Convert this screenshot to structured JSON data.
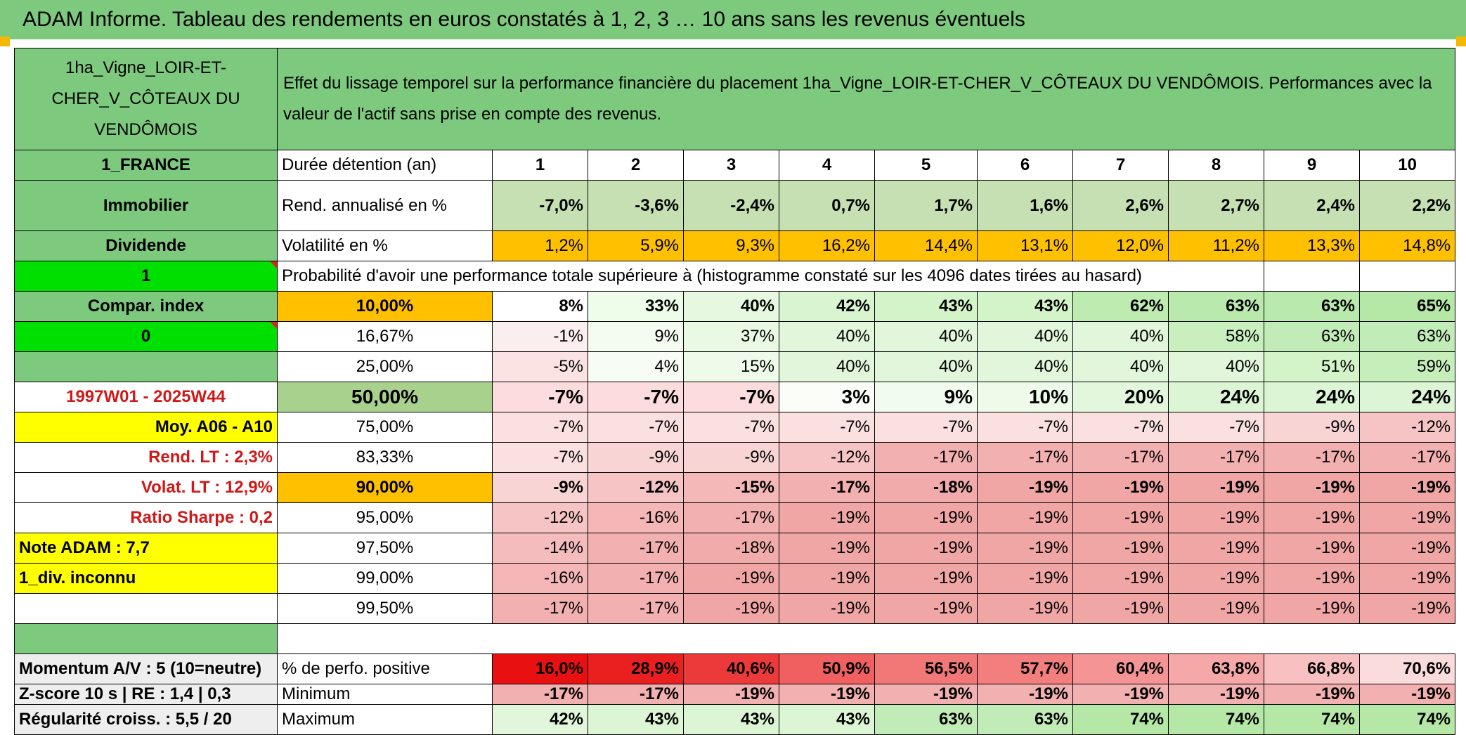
{
  "title": "ADAM Informe. Tableau des rendements en euros constatés à 1, 2, 3 … 10 ans sans les revenus éventuels",
  "asset_name": "1ha_Vigne_LOIR-ET-CHER_V_CÔTEAUX DU VENDÔMOIS",
  "header_text": "Effet du lissage temporel sur la performance financière du placement 1ha_Vigne_LOIR-ET-CHER_V_CÔTEAUX DU VENDÔMOIS. Performances avec la valeur de l'actif sans prise en compte des revenus.",
  "left": {
    "country": "1_FRANCE",
    "category": "Immobilier",
    "income_type": "Dividende",
    "option1": "1",
    "compar": "Compar. index",
    "option2": "0",
    "period": "1997W01 - 2025W44",
    "moy": "Moy. A06 - A10",
    "rend_lt": "Rend. LT :   2,3%",
    "volat_lt": "Volat. LT :   12,9%",
    "sharpe": "Ratio Sharpe :   0,2",
    "note": "Note ADAM : 7,7",
    "div": "1_div. inconnu",
    "momentum": "Momentum A/V : 5 (10=neutre)",
    "zscore": "Z-score 10 s | RE : 1,4 | 0,3",
    "regularite": "Régularité croiss. : 5,5 / 20"
  },
  "duration_label": "Durée détention (an)",
  "years": [
    "1",
    "2",
    "3",
    "4",
    "5",
    "6",
    "7",
    "8",
    "9",
    "10"
  ],
  "rend_label": "Rend. annualisé en %",
  "rend": [
    "-7,0%",
    "-3,6%",
    "-2,4%",
    "0,7%",
    "1,7%",
    "1,6%",
    "2,6%",
    "2,7%",
    "2,4%",
    "2,2%"
  ],
  "vol_label": "Volatilité en %",
  "vol": [
    "1,2%",
    "5,9%",
    "9,3%",
    "16,2%",
    "14,4%",
    "13,1%",
    "12,0%",
    "11,2%",
    "13,3%",
    "14,8%"
  ],
  "prob_label": "Probabilité d'avoir une performance totale supérieure à (histogramme constaté sur les 4096 dates tirées au hasard)",
  "quantiles": [
    {
      "p": "10,00%",
      "bold": true,
      "v": [
        "8%",
        "33%",
        "40%",
        "42%",
        "43%",
        "43%",
        "62%",
        "63%",
        "63%",
        "65%"
      ]
    },
    {
      "p": "16,67%",
      "bold": false,
      "v": [
        "-1%",
        "9%",
        "37%",
        "40%",
        "40%",
        "40%",
        "40%",
        "58%",
        "63%",
        "63%"
      ]
    },
    {
      "p": "25,00%",
      "bold": false,
      "v": [
        "-5%",
        "4%",
        "15%",
        "40%",
        "40%",
        "40%",
        "40%",
        "40%",
        "51%",
        "59%"
      ]
    },
    {
      "p": "50,00%",
      "bold": true,
      "v": [
        "-7%",
        "-7%",
        "-7%",
        "3%",
        "9%",
        "10%",
        "20%",
        "24%",
        "24%",
        "24%"
      ]
    },
    {
      "p": "75,00%",
      "bold": false,
      "v": [
        "-7%",
        "-7%",
        "-7%",
        "-7%",
        "-7%",
        "-7%",
        "-7%",
        "-7%",
        "-9%",
        "-12%"
      ]
    },
    {
      "p": "83,33%",
      "bold": false,
      "v": [
        "-7%",
        "-9%",
        "-9%",
        "-12%",
        "-17%",
        "-17%",
        "-17%",
        "-17%",
        "-17%",
        "-17%"
      ]
    },
    {
      "p": "90,00%",
      "bold": true,
      "v": [
        "-9%",
        "-12%",
        "-15%",
        "-17%",
        "-18%",
        "-19%",
        "-19%",
        "-19%",
        "-19%",
        "-19%"
      ]
    },
    {
      "p": "95,00%",
      "bold": false,
      "v": [
        "-12%",
        "-16%",
        "-17%",
        "-19%",
        "-19%",
        "-19%",
        "-19%",
        "-19%",
        "-19%",
        "-19%"
      ]
    },
    {
      "p": "97,50%",
      "bold": false,
      "v": [
        "-14%",
        "-17%",
        "-18%",
        "-19%",
        "-19%",
        "-19%",
        "-19%",
        "-19%",
        "-19%",
        "-19%"
      ]
    },
    {
      "p": "99,00%",
      "bold": false,
      "v": [
        "-16%",
        "-17%",
        "-19%",
        "-19%",
        "-19%",
        "-19%",
        "-19%",
        "-19%",
        "-19%",
        "-19%"
      ]
    },
    {
      "p": "99,50%",
      "bold": false,
      "v": [
        "-17%",
        "-17%",
        "-19%",
        "-19%",
        "-19%",
        "-19%",
        "-19%",
        "-19%",
        "-19%",
        "-19%"
      ]
    }
  ],
  "pos_label": "% de perfo. positive",
  "pos": [
    "16,0%",
    "28,9%",
    "40,6%",
    "50,9%",
    "56,5%",
    "57,7%",
    "60,4%",
    "63,8%",
    "66,8%",
    "70,6%"
  ],
  "min_label": "Minimum",
  "min": [
    "-17%",
    "-17%",
    "-19%",
    "-19%",
    "-19%",
    "-19%",
    "-19%",
    "-19%",
    "-19%",
    "-19%"
  ],
  "max_label": "Maximum",
  "max": [
    "42%",
    "43%",
    "43%",
    "43%",
    "63%",
    "63%",
    "74%",
    "74%",
    "74%",
    "74%"
  ],
  "colors": {
    "green": "#7dc97d",
    "bright_green": "#00e000",
    "yellow": "#ffff00",
    "orange": "#ffc000",
    "red_text": "#d01818"
  }
}
